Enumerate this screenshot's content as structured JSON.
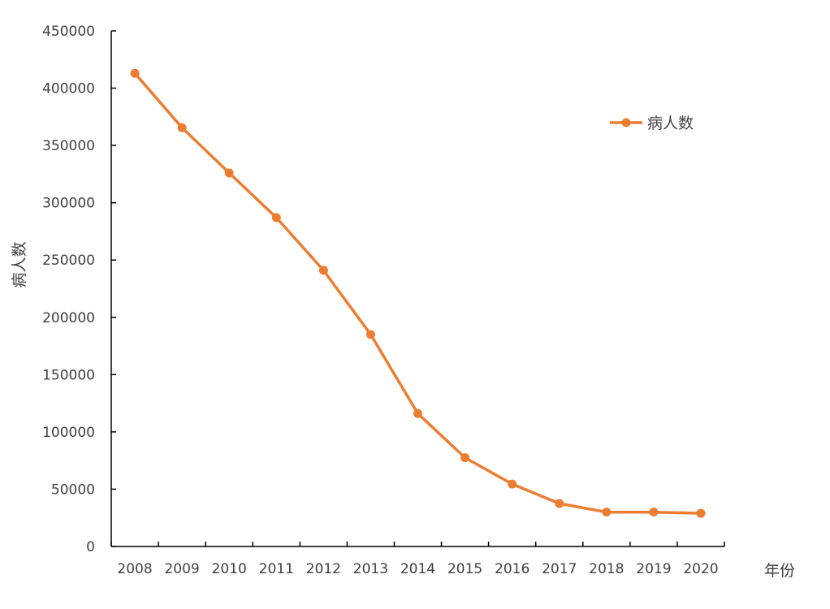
{
  "chart_data": {
    "type": "line",
    "title": "",
    "xlabel": "年份",
    "ylabel": "病人数",
    "categories": [
      "2008",
      "2009",
      "2010",
      "2011",
      "2012",
      "2013",
      "2014",
      "2015",
      "2016",
      "2017",
      "2018",
      "2019",
      "2020"
    ],
    "series": [
      {
        "name": "病人数",
        "color": "#ED7D31",
        "values": [
          413000,
          365500,
          326000,
          287000,
          241000,
          185000,
          116000,
          77500,
          54500,
          37500,
          30000,
          30000,
          29000
        ]
      }
    ],
    "ylim": [
      0,
      450000
    ],
    "yticks": [
      "0",
      "50000",
      "100000",
      "150000",
      "200000",
      "250000",
      "300000",
      "350000",
      "400000",
      "450000"
    ],
    "grid": false,
    "legend_position": "top-right",
    "axis_color": "#000000"
  }
}
